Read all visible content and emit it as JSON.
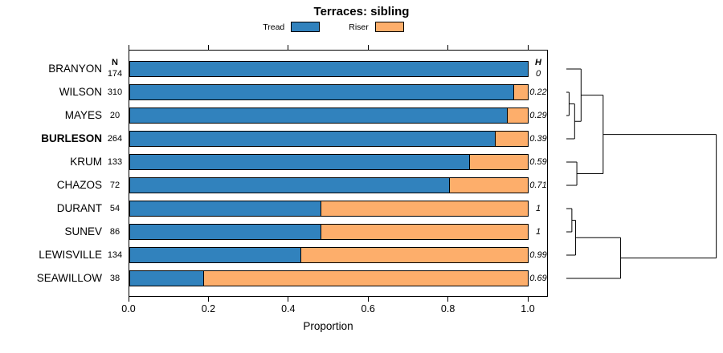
{
  "chart_data": {
    "type": "bar",
    "stacked": true,
    "orientation": "horizontal",
    "title": "Terraces: sibling",
    "xlabel": "Proportion",
    "xlim": [
      0,
      1
    ],
    "x_ticks": [
      0,
      0.2,
      0.4,
      0.6,
      0.8,
      1.0
    ],
    "categories": [
      "BRANYON",
      "WILSON",
      "MAYES",
      "BURLESON",
      "KRUM",
      "CHAZOS",
      "DURANT",
      "SUNEV",
      "LEWISVILLE",
      "SEAWILLOW"
    ],
    "bold_category": "BURLESON",
    "series": [
      {
        "name": "Tread",
        "color": "#3182BD",
        "values": [
          1.0,
          0.965,
          0.95,
          0.92,
          0.855,
          0.805,
          0.48,
          0.48,
          0.43,
          0.185
        ]
      },
      {
        "name": "Riser",
        "color": "#FDAE6B",
        "values": [
          0.0,
          0.035,
          0.05,
          0.08,
          0.145,
          0.195,
          0.52,
          0.52,
          0.57,
          0.815
        ]
      }
    ],
    "n_header": "N",
    "h_header": "H",
    "n_values": [
      174,
      310,
      20,
      264,
      133,
      72,
      54,
      86,
      134,
      38
    ],
    "h_values": [
      "0",
      "0.22",
      "0.29",
      "0.39",
      "0.59",
      "0.71",
      "1",
      "1",
      "0.99",
      "0.69"
    ],
    "legend_position": "top",
    "grid": false,
    "dendrogram": {
      "merges": [
        [
          "WILSON",
          "MAYES",
          0.015
        ],
        [
          "m0",
          "BURLESON",
          0.045
        ],
        [
          "BRANYON",
          "m1",
          0.08
        ],
        [
          "KRUM",
          "CHAZOS",
          0.057
        ],
        [
          "m2",
          "m3",
          0.2
        ],
        [
          "DURANT",
          "SUNEV",
          0.03
        ],
        [
          "m5",
          "LEWISVILLE",
          0.05
        ],
        [
          "m6",
          "SEAWILLOW",
          0.295
        ],
        [
          "m4",
          "m7",
          0.815
        ]
      ]
    }
  }
}
